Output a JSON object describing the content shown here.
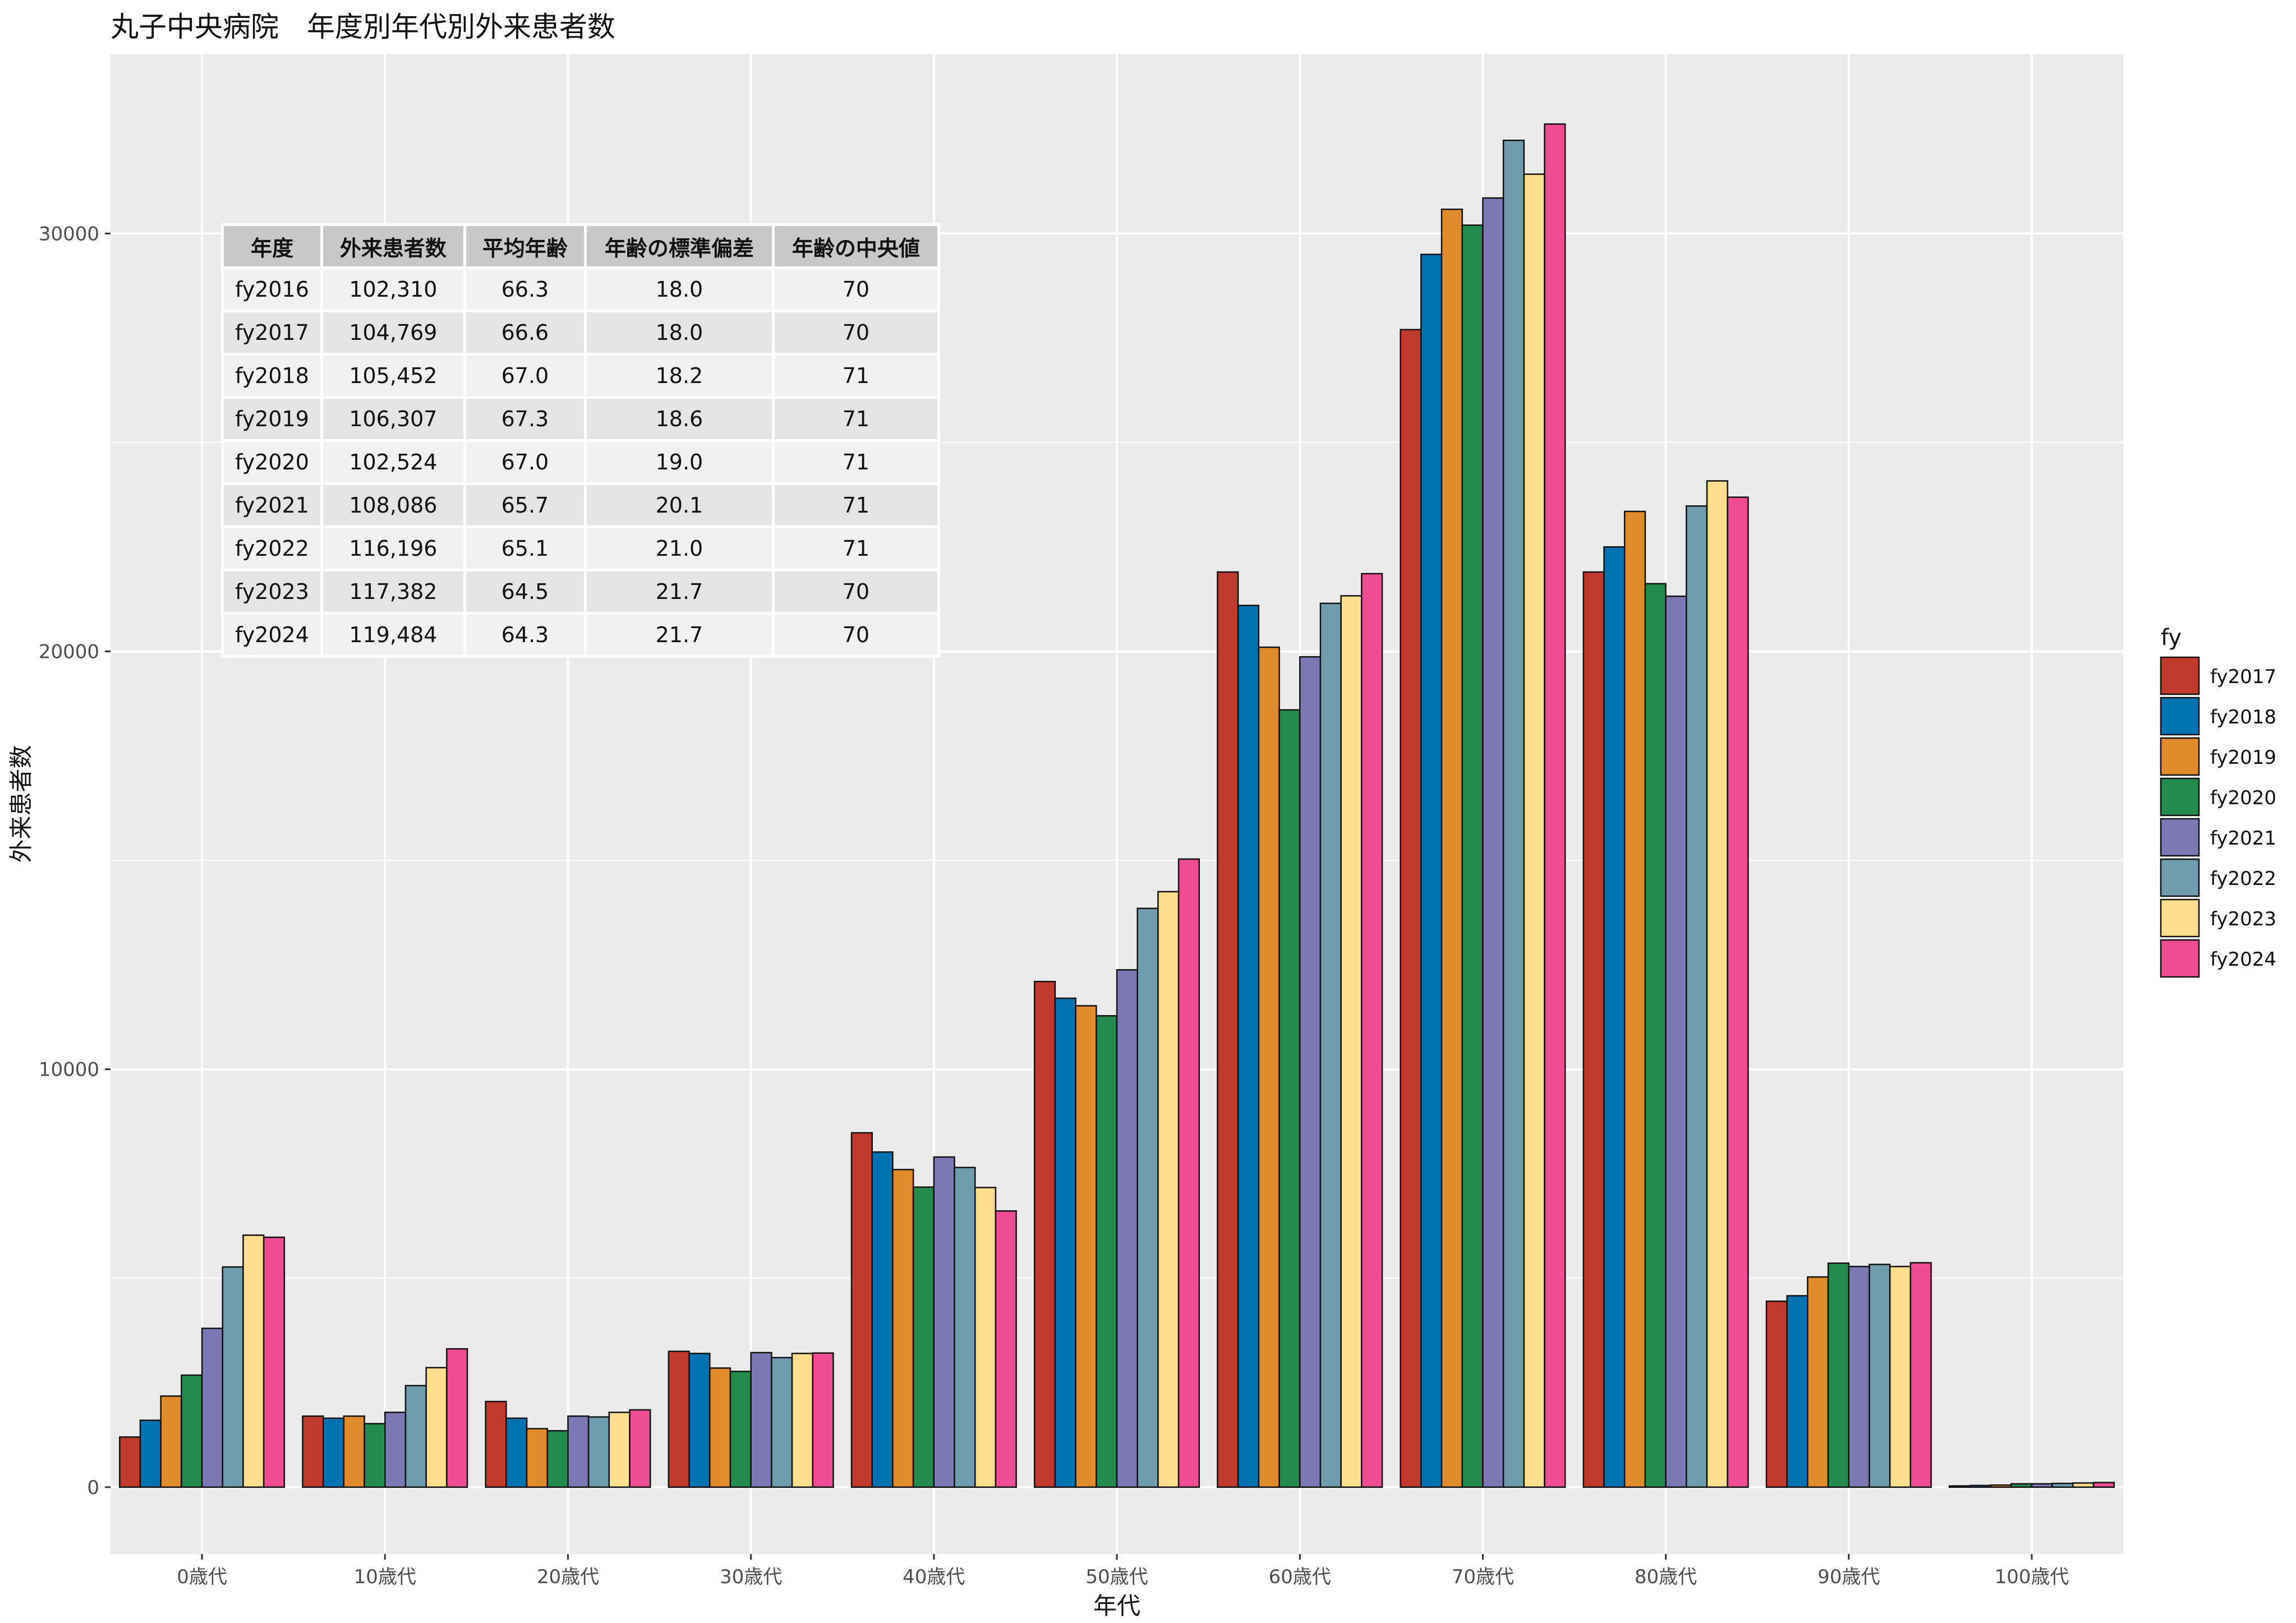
{
  "title": "丸子中央病院　年度別年代別外来患者数",
  "chart_data": {
    "type": "bar",
    "title": "丸子中央病院　年度別年代別外来患者数",
    "xlabel": "年代",
    "ylabel": "外来患者数",
    "ylim": [
      -1600,
      34300
    ],
    "yticks": [
      0,
      10000,
      20000,
      30000
    ],
    "grid": true,
    "legend_title": "fy",
    "legend_position": "right",
    "categories": [
      "0歳代",
      "10歳代",
      "20歳代",
      "30歳代",
      "40歳代",
      "50歳代",
      "60歳代",
      "70歳代",
      "80歳代",
      "90歳代",
      "100歳代"
    ],
    "series": [
      {
        "name": "fy2017",
        "color": "#C0392B",
        "values": [
          1200,
          1700,
          2050,
          3250,
          8480,
          12100,
          21900,
          27700,
          21900,
          4450,
          30
        ]
      },
      {
        "name": "fy2018",
        "color": "#0072B2",
        "values": [
          1600,
          1650,
          1650,
          3200,
          8020,
          11700,
          21100,
          29500,
          22500,
          4580,
          40
        ]
      },
      {
        "name": "fy2019",
        "color": "#E08A2C",
        "values": [
          2180,
          1700,
          1400,
          2850,
          7600,
          11520,
          20100,
          30580,
          23350,
          5030,
          50
        ]
      },
      {
        "name": "fy2020",
        "color": "#238B4E",
        "values": [
          2680,
          1520,
          1350,
          2770,
          7180,
          11280,
          18600,
          30200,
          21620,
          5360,
          80
        ]
      },
      {
        "name": "fy2021",
        "color": "#7B78B6",
        "values": [
          3800,
          1790,
          1700,
          3220,
          7900,
          12380,
          19870,
          30850,
          21320,
          5280,
          80
        ]
      },
      {
        "name": "fy2022",
        "color": "#6E9BAE",
        "values": [
          5270,
          2430,
          1680,
          3100,
          7650,
          13850,
          21150,
          32230,
          23480,
          5330,
          90
        ]
      },
      {
        "name": "fy2023",
        "color": "#FFDD8E",
        "values": [
          6030,
          2860,
          1790,
          3200,
          7170,
          14250,
          21330,
          31420,
          24080,
          5280,
          100
        ]
      },
      {
        "name": "fy2024",
        "color": "#EE4C93",
        "values": [
          5980,
          3310,
          1850,
          3210,
          6610,
          15030,
          21860,
          32620,
          23690,
          5370,
          110
        ]
      }
    ]
  },
  "table": {
    "headers": [
      "年度",
      "外来患者数",
      "平均年齢",
      "年齢の標準偏差",
      "年齢の中央値"
    ],
    "rows": [
      [
        "fy2016",
        "102,310",
        "66.3",
        "18.0",
        "70"
      ],
      [
        "fy2017",
        "104,769",
        "66.6",
        "18.0",
        "70"
      ],
      [
        "fy2018",
        "105,452",
        "67.0",
        "18.2",
        "71"
      ],
      [
        "fy2019",
        "106,307",
        "67.3",
        "18.6",
        "71"
      ],
      [
        "fy2020",
        "102,524",
        "67.0",
        "19.0",
        "71"
      ],
      [
        "fy2021",
        "108,086",
        "65.7",
        "20.1",
        "71"
      ],
      [
        "fy2022",
        "116,196",
        "65.1",
        "21.0",
        "71"
      ],
      [
        "fy2023",
        "117,382",
        "64.5",
        "21.7",
        "70"
      ],
      [
        "fy2024",
        "119,484",
        "64.3",
        "21.7",
        "70"
      ]
    ]
  }
}
